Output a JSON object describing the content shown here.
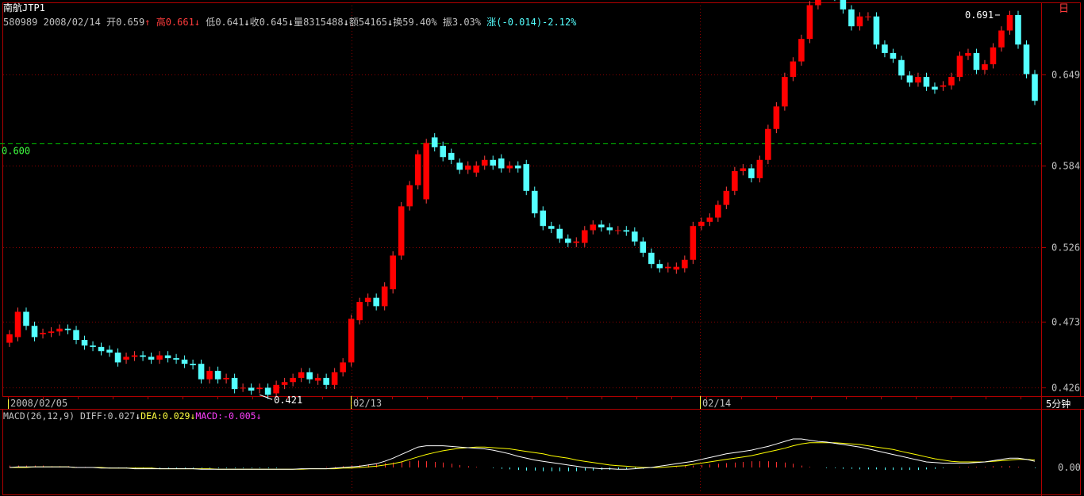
{
  "header": {
    "stock_name": "南航JTP1",
    "code": "580989",
    "date": "2008/02/14",
    "open_label": "开",
    "open": "0.659",
    "high_label": "高",
    "high": "0.661",
    "low_label": "低",
    "low": "0.641",
    "close_label": "收",
    "close": "0.645",
    "volume_label": "量",
    "volume": "8315488",
    "amount_label": "额",
    "amount": "54165",
    "turnover_label": "换",
    "turnover": "59.40%",
    "amplitude_label": "振",
    "amplitude": "3.03%",
    "change_label": "涨",
    "change": "(-0.014)-2.12%"
  },
  "period_label": "5分钟",
  "corner_label": "日",
  "date_labels": [
    "2008/02/05",
    "02/13",
    "02/14"
  ],
  "macd": {
    "name": "MACD(26,12,9)",
    "diff_label": "DIFF:",
    "diff": "0.027",
    "dea_label": "DEA:",
    "dea": "0.029",
    "macd_label": "MACD:",
    "macd": "-0.005",
    "zero_label": "0.00"
  },
  "colors": {
    "up": "#ff0000",
    "down": "#54ffff",
    "grid": "#8b0000",
    "diff_line": "#ffffff",
    "dea_line": "#ffff00",
    "ref_line": "#00c000"
  },
  "chart_data": {
    "type": "candlestick",
    "y_ticks": [
      0.426,
      0.473,
      0.526,
      0.584,
      0.649
    ],
    "ylim": [
      0.42,
      0.7
    ],
    "ref_line": {
      "value": 0.6,
      "label": "0.600"
    },
    "annotations": [
      {
        "label": "0.421",
        "value": 0.421,
        "index": 30
      },
      {
        "label": "0.691",
        "value": 0.691,
        "index": 119
      }
    ],
    "candles": [
      [
        0.458,
        0.464
      ],
      [
        0.462,
        0.48
      ],
      [
        0.48,
        0.47
      ],
      [
        0.47,
        0.462
      ],
      [
        0.464,
        0.465
      ],
      [
        0.465,
        0.466
      ],
      [
        0.466,
        0.468
      ],
      [
        0.468,
        0.467
      ],
      [
        0.467,
        0.46
      ],
      [
        0.46,
        0.456
      ],
      [
        0.456,
        0.455
      ],
      [
        0.455,
        0.452
      ],
      [
        0.453,
        0.451
      ],
      [
        0.451,
        0.444
      ],
      [
        0.446,
        0.448
      ],
      [
        0.448,
        0.449
      ],
      [
        0.449,
        0.448
      ],
      [
        0.448,
        0.446
      ],
      [
        0.446,
        0.449
      ],
      [
        0.449,
        0.447
      ],
      [
        0.447,
        0.446
      ],
      [
        0.446,
        0.443
      ],
      [
        0.443,
        0.442
      ],
      [
        0.443,
        0.432
      ],
      [
        0.432,
        0.438
      ],
      [
        0.438,
        0.432
      ],
      [
        0.432,
        0.433
      ],
      [
        0.433,
        0.425
      ],
      [
        0.426,
        0.426
      ],
      [
        0.426,
        0.424
      ],
      [
        0.425,
        0.426
      ],
      [
        0.426,
        0.421
      ],
      [
        0.422,
        0.428
      ],
      [
        0.428,
        0.43
      ],
      [
        0.43,
        0.433
      ],
      [
        0.433,
        0.437
      ],
      [
        0.437,
        0.432
      ],
      [
        0.431,
        0.433
      ],
      [
        0.433,
        0.428
      ],
      [
        0.428,
        0.437
      ],
      [
        0.437,
        0.444
      ],
      [
        0.444,
        0.475
      ],
      [
        0.474,
        0.487
      ],
      [
        0.487,
        0.49
      ],
      [
        0.49,
        0.484
      ],
      [
        0.484,
        0.498
      ],
      [
        0.496,
        0.52
      ],
      [
        0.52,
        0.555
      ],
      [
        0.555,
        0.57
      ],
      [
        0.57,
        0.592
      ],
      [
        0.56,
        0.6
      ],
      [
        0.604,
        0.597
      ],
      [
        0.598,
        0.59
      ],
      [
        0.593,
        0.588
      ],
      [
        0.586,
        0.581
      ],
      [
        0.581,
        0.584
      ],
      [
        0.579,
        0.584
      ],
      [
        0.584,
        0.588
      ],
      [
        0.588,
        0.584
      ],
      [
        0.589,
        0.582
      ],
      [
        0.582,
        0.584
      ],
      [
        0.584,
        0.582
      ],
      [
        0.585,
        0.566
      ],
      [
        0.566,
        0.55
      ],
      [
        0.552,
        0.541
      ],
      [
        0.541,
        0.539
      ],
      [
        0.539,
        0.532
      ],
      [
        0.532,
        0.529
      ],
      [
        0.529,
        0.53
      ],
      [
        0.529,
        0.538
      ],
      [
        0.538,
        0.542
      ],
      [
        0.542,
        0.54
      ],
      [
        0.54,
        0.538
      ],
      [
        0.538,
        0.538
      ],
      [
        0.538,
        0.537
      ],
      [
        0.537,
        0.53
      ],
      [
        0.53,
        0.522
      ],
      [
        0.522,
        0.514
      ],
      [
        0.514,
        0.511
      ],
      [
        0.511,
        0.512
      ],
      [
        0.51,
        0.512
      ],
      [
        0.511,
        0.517
      ],
      [
        0.517,
        0.541
      ],
      [
        0.541,
        0.544
      ],
      [
        0.544,
        0.547
      ],
      [
        0.547,
        0.556
      ],
      [
        0.556,
        0.566
      ],
      [
        0.566,
        0.58
      ],
      [
        0.58,
        0.582
      ],
      [
        0.582,
        0.575
      ],
      [
        0.575,
        0.588
      ],
      [
        0.588,
        0.61
      ],
      [
        0.61,
        0.626
      ],
      [
        0.626,
        0.647
      ],
      [
        0.647,
        0.658
      ],
      [
        0.658,
        0.674
      ],
      [
        0.674,
        0.698
      ],
      [
        0.698,
        0.713
      ],
      [
        0.713,
        0.724
      ],
      [
        0.724,
        0.704
      ],
      [
        0.702,
        0.695
      ],
      [
        0.695,
        0.683
      ],
      [
        0.683,
        0.69
      ],
      [
        0.69,
        0.69
      ],
      [
        0.69,
        0.67
      ],
      [
        0.67,
        0.664
      ],
      [
        0.664,
        0.66
      ],
      [
        0.659,
        0.648
      ],
      [
        0.648,
        0.643
      ],
      [
        0.643,
        0.647
      ],
      [
        0.647,
        0.64
      ],
      [
        0.64,
        0.638
      ],
      [
        0.64,
        0.641
      ],
      [
        0.641,
        0.647
      ],
      [
        0.647,
        0.662
      ],
      [
        0.662,
        0.664
      ],
      [
        0.664,
        0.652
      ],
      [
        0.652,
        0.656
      ],
      [
        0.656,
        0.668
      ],
      [
        0.668,
        0.68
      ],
      [
        0.68,
        0.691
      ],
      [
        0.691,
        0.67
      ],
      [
        0.67,
        0.649
      ],
      [
        0.649,
        0.63
      ]
    ],
    "macd_bars": [
      0.003,
      0.003,
      0.003,
      0.003,
      0.003,
      0.002,
      0.002,
      0.002,
      0.001,
      0.001,
      0.0,
      -0.0,
      -0.001,
      -0.001,
      -0.001,
      -0.001,
      -0.001,
      -0.001,
      -0.001,
      -0.001,
      -0.001,
      -0.001,
      -0.001,
      -0.001,
      -0.001,
      -0.001,
      -0.001,
      -0.001,
      -0.001,
      -0.001,
      -0.001,
      -0.001,
      -0.001,
      -0.0,
      0.0,
      0.0,
      0.0,
      0.0,
      0.001,
      0.001,
      0.002,
      0.003,
      0.004,
      0.005,
      0.006,
      0.007,
      0.008,
      0.009,
      0.01,
      0.011,
      0.01,
      0.009,
      0.008,
      0.006,
      0.004,
      0.002,
      0.001,
      -0.0,
      -0.001,
      -0.002,
      -0.003,
      -0.004,
      -0.005,
      -0.005,
      -0.006,
      -0.006,
      -0.006,
      -0.006,
      -0.006,
      -0.005,
      -0.005,
      -0.004,
      -0.004,
      -0.003,
      -0.003,
      -0.002,
      -0.002,
      -0.001,
      -0.0,
      0.0,
      0.001,
      0.002,
      0.003,
      0.004,
      0.005,
      0.006,
      0.007,
      0.008,
      0.009,
      0.01,
      0.01,
      0.01,
      0.009,
      0.008,
      0.006,
      0.003,
      0.001,
      -0.0,
      -0.001,
      -0.001,
      -0.002,
      -0.002,
      -0.003,
      -0.003,
      -0.003,
      -0.004,
      -0.004,
      -0.004,
      -0.004,
      -0.004,
      -0.003,
      -0.002,
      -0.001,
      0.0,
      0.001,
      0.001,
      0.001,
      0.001,
      0.002,
      0.002,
      0.002,
      0.001,
      0.0,
      -0.001
    ],
    "diff": [
      0.0,
      0.001,
      0.001,
      0.001,
      0.001,
      0.001,
      0.001,
      0.001,
      0.0,
      0.0,
      -0.0,
      -0.001,
      -0.001,
      -0.001,
      -0.001,
      -0.002,
      -0.002,
      -0.002,
      -0.002,
      -0.002,
      -0.002,
      -0.002,
      -0.002,
      -0.003,
      -0.003,
      -0.003,
      -0.003,
      -0.003,
      -0.003,
      -0.003,
      -0.003,
      -0.003,
      -0.003,
      -0.003,
      -0.003,
      -0.002,
      -0.002,
      -0.002,
      -0.002,
      -0.001,
      -0.0,
      0.001,
      0.002,
      0.004,
      0.006,
      0.01,
      0.015,
      0.021,
      0.027,
      0.033,
      0.035,
      0.035,
      0.035,
      0.034,
      0.033,
      0.032,
      0.031,
      0.03,
      0.028,
      0.025,
      0.022,
      0.018,
      0.015,
      0.012,
      0.01,
      0.008,
      0.006,
      0.004,
      0.002,
      0.0,
      -0.001,
      -0.002,
      -0.002,
      -0.003,
      -0.003,
      -0.002,
      -0.001,
      0.0,
      0.002,
      0.004,
      0.006,
      0.008,
      0.01,
      0.013,
      0.016,
      0.019,
      0.022,
      0.024,
      0.026,
      0.028,
      0.031,
      0.034,
      0.038,
      0.042,
      0.046,
      0.046,
      0.044,
      0.042,
      0.041,
      0.039,
      0.037,
      0.035,
      0.033,
      0.03,
      0.027,
      0.024,
      0.021,
      0.018,
      0.015,
      0.012,
      0.009,
      0.008,
      0.007,
      0.007,
      0.007,
      0.007,
      0.008,
      0.009,
      0.011,
      0.013,
      0.015,
      0.015,
      0.013,
      0.01
    ],
    "dea": [
      0.0,
      0.0,
      0.0,
      0.001,
      0.001,
      0.001,
      0.001,
      0.001,
      0.0,
      0.0,
      0.0,
      -0.0,
      -0.001,
      -0.001,
      -0.001,
      -0.001,
      -0.001,
      -0.001,
      -0.002,
      -0.002,
      -0.002,
      -0.002,
      -0.002,
      -0.002,
      -0.002,
      -0.003,
      -0.003,
      -0.003,
      -0.003,
      -0.003,
      -0.003,
      -0.003,
      -0.003,
      -0.003,
      -0.003,
      -0.003,
      -0.002,
      -0.002,
      -0.002,
      -0.002,
      -0.001,
      -0.001,
      -0.0,
      0.001,
      0.002,
      0.004,
      0.006,
      0.009,
      0.013,
      0.017,
      0.021,
      0.024,
      0.027,
      0.029,
      0.031,
      0.032,
      0.033,
      0.033,
      0.032,
      0.031,
      0.03,
      0.028,
      0.026,
      0.024,
      0.022,
      0.019,
      0.017,
      0.015,
      0.012,
      0.01,
      0.008,
      0.006,
      0.004,
      0.003,
      0.002,
      0.001,
      0.0,
      0.0,
      0.0,
      0.001,
      0.002,
      0.003,
      0.005,
      0.007,
      0.009,
      0.011,
      0.013,
      0.015,
      0.017,
      0.019,
      0.022,
      0.025,
      0.028,
      0.031,
      0.035,
      0.038,
      0.04,
      0.04,
      0.04,
      0.04,
      0.039,
      0.038,
      0.037,
      0.035,
      0.033,
      0.031,
      0.029,
      0.026,
      0.023,
      0.02,
      0.017,
      0.014,
      0.012,
      0.01,
      0.009,
      0.009,
      0.009,
      0.009,
      0.01,
      0.011,
      0.012,
      0.013,
      0.013,
      0.012
    ]
  }
}
